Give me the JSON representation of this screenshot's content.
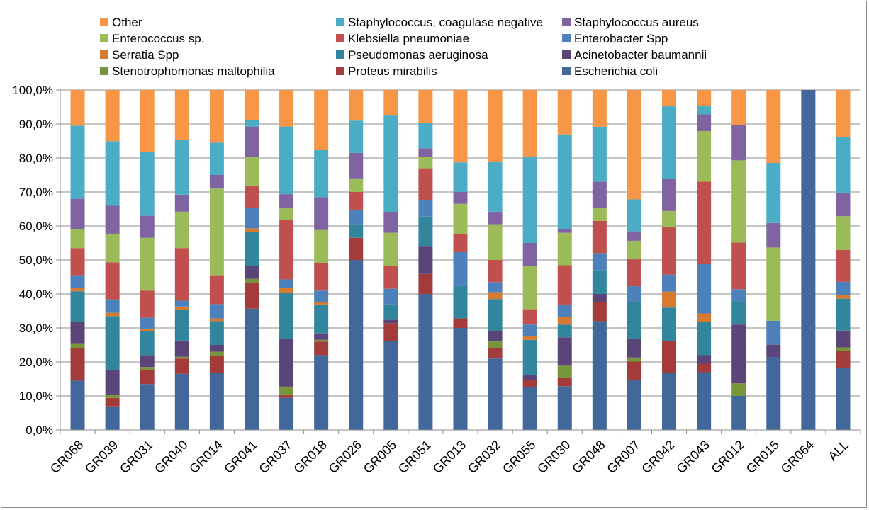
{
  "chart_data": {
    "type": "bar",
    "stacked": true,
    "percent": true,
    "categories": [
      "GR068",
      "GR039",
      "GR031",
      "GR040",
      "GR014",
      "GR041",
      "GR037",
      "GR018",
      "GR026",
      "GR005",
      "GR051",
      "GR013",
      "GR032",
      "GR055",
      "GR030",
      "GR048",
      "GR007",
      "GR042",
      "GR043",
      "GR012",
      "GR015",
      "GR064",
      "ALL"
    ],
    "ylim": [
      0,
      100
    ],
    "yticks": [
      "0,0%",
      "10,0%",
      "20,0%",
      "30,0%",
      "40,0%",
      "50,0%",
      "60,0%",
      "70,0%",
      "80,0%",
      "90,0%",
      "100,0%"
    ],
    "legend_position": "top",
    "series": [
      {
        "name": "Escherichia coli",
        "color": "#41679b",
        "values": [
          14.5,
          7.0,
          13.5,
          16.5,
          16.8,
          35.5,
          9.5,
          22.0,
          50.0,
          27.5,
          40.8,
          30.0,
          21.0,
          12.7,
          12.8,
          32.0,
          14.8,
          16.7,
          17.0,
          10.0,
          21.4,
          100,
          18.5
        ]
      },
      {
        "name": "Proteus mirabilis",
        "color": "#a23b39",
        "values": [
          9.5,
          2.5,
          4.0,
          4.5,
          5.0,
          7.5,
          1.0,
          4.0,
          6.5,
          5.5,
          6.0,
          2.8,
          3.0,
          2.0,
          2.5,
          5.5,
          5.5,
          9.5,
          2.5,
          0,
          0,
          0,
          5.0
        ]
      },
      {
        "name": "Stenotrophomonas maltophilia",
        "color": "#77963c",
        "values": [
          1.5,
          0.8,
          1.0,
          0.5,
          1.2,
          1.2,
          2.3,
          0.5,
          0,
          0,
          0,
          0,
          2.0,
          0,
          3.5,
          0,
          1.2,
          0,
          0,
          3.7,
          0,
          0,
          1.0
        ]
      },
      {
        "name": "Acinetobacter baumannii",
        "color": "#5b4478",
        "values": [
          6.3,
          7.5,
          3.5,
          4.8,
          2.0,
          3.8,
          14.2,
          1.9,
          0,
          1.0,
          8.2,
          0,
          3.0,
          1.5,
          8.3,
          2.5,
          5.5,
          0,
          2.5,
          17.3,
          3.6,
          0,
          5.0
        ]
      },
      {
        "name": "Pseudomonas aeruginosa",
        "color": "#31859c",
        "values": [
          9.0,
          16.0,
          7.0,
          9.0,
          7.0,
          10.0,
          13.5,
          8.5,
          4.0,
          4.8,
          9.0,
          9.5,
          9.5,
          10.3,
          3.7,
          7.0,
          11.2,
          9.8,
          9.8,
          6.9,
          0,
          0,
          9.5
        ]
      },
      {
        "name": "Serratia Spp",
        "color": "#d57a30",
        "values": [
          1.0,
          1.0,
          0.8,
          1.0,
          0.8,
          1.0,
          1.5,
          0.6,
          0,
          0,
          0,
          0,
          2.0,
          1.0,
          2.2,
          0,
          0,
          4.7,
          2.5,
          0,
          0,
          0,
          1.0
        ]
      },
      {
        "name": "Enterobacter Spp",
        "color": "#4d81bc",
        "values": [
          3.7,
          4.0,
          3.2,
          1.7,
          4.2,
          6.0,
          2.5,
          3.5,
          4.3,
          4.8,
          5.0,
          10.0,
          3.0,
          3.5,
          3.7,
          5.0,
          4.5,
          5.0,
          14.5,
          3.5,
          7.0,
          0,
          4.0
        ]
      },
      {
        "name": "Klebsiella pneumoniae",
        "color": "#c0504d",
        "values": [
          8.0,
          11.0,
          8.0,
          15.5,
          8.5,
          6.3,
          17.5,
          8.0,
          5.2,
          7.0,
          9.5,
          5.2,
          6.5,
          4.5,
          11.5,
          9.5,
          8.0,
          14.0,
          24.3,
          13.7,
          0,
          0,
          9.5
        ]
      },
      {
        "name": "Enterococcus sp.",
        "color": "#9bbb59",
        "values": [
          5.5,
          8.5,
          15.5,
          10.7,
          25.5,
          8.5,
          3.5,
          9.8,
          4.0,
          10.3,
          3.5,
          9.0,
          10.5,
          12.8,
          9.5,
          3.8,
          5.5,
          4.7,
          14.9,
          24.2,
          21.5,
          0,
          10.0
        ]
      },
      {
        "name": "Staphylococcus aureus",
        "color": "#8064a2",
        "values": [
          9.0,
          8.3,
          6.5,
          5.0,
          4.0,
          9.0,
          4.2,
          9.7,
          7.5,
          6.4,
          2.5,
          3.5,
          3.7,
          6.7,
          1.0,
          7.7,
          2.8,
          9.5,
          4.9,
          10.3,
          7.2,
          0,
          7.0
        ]
      },
      {
        "name": "Staphylococcus, coagulase negative",
        "color": "#4bacc6",
        "values": [
          21.5,
          19.2,
          18.7,
          16.0,
          9.5,
          2.0,
          20.0,
          13.8,
          9.5,
          29.8,
          7.7,
          8.7,
          14.6,
          25.3,
          27.8,
          16.2,
          9.5,
          21.3,
          2.4,
          0,
          17.6,
          0,
          16.5
        ]
      },
      {
        "name": "Other",
        "color": "#f79646",
        "values": [
          10.5,
          15.2,
          18.3,
          14.8,
          15.5,
          8.7,
          10.8,
          17.7,
          9.0,
          7.9,
          9.8,
          21.3,
          21.2,
          19.7,
          13.0,
          10.8,
          32.5,
          4.8,
          4.8,
          10.4,
          21.4,
          0,
          14.0
        ]
      }
    ],
    "legend_order": [
      "Other",
      "Staphylococcus, coagulase negative",
      "Staphylococcus aureus",
      "Enterococcus sp.",
      "Klebsiella pneumoniae",
      "Enterobacter Spp",
      "Serratia Spp",
      "Pseudomonas aeruginosa",
      "Acinetobacter baumannii",
      "Stenotrophomonas maltophilia",
      "Proteus mirabilis",
      "Escherichia coli"
    ],
    "grid": true
  }
}
